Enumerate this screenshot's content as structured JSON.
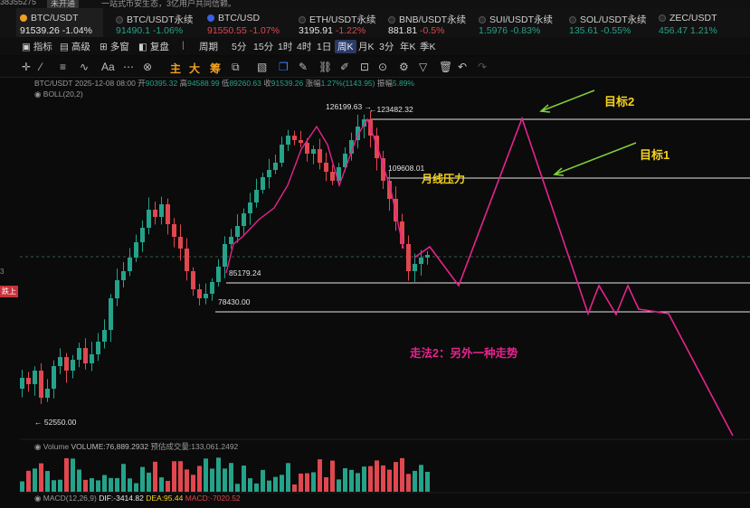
{
  "top_strip": {
    "left_text": "38355275",
    "badge": "未开通",
    "notice": "一站式币安生态，3亿用户共同信赖。"
  },
  "tickers": [
    {
      "symbol": "BTC/USDT",
      "price": "91539.26",
      "change": "-1.04%",
      "active": true
    },
    {
      "symbol": "BTC/USDT永续",
      "price": "91490.1",
      "change": "-1.06%",
      "active": false
    },
    {
      "symbol": "BTC/USD",
      "price": "91550.55",
      "change": "-1.07%",
      "active": false
    },
    {
      "symbol": "ETH/USDT永续",
      "price": "3195.91",
      "change": "-1.22%",
      "active": false
    },
    {
      "symbol": "BNB/USDT永续",
      "price": "881.81",
      "change": "-0.5%",
      "active": false
    },
    {
      "symbol": "SUI/USDT永续",
      "price": "1.5976",
      "change": "-0.83%",
      "active": false
    },
    {
      "symbol": "SOL/USDT永续",
      "price": "135.61",
      "change": "-0.55%",
      "active": false
    },
    {
      "symbol": "ZEC/USDT",
      "price": "456.47",
      "change": "1.21%",
      "active": false
    }
  ],
  "toolbar": {
    "indicators": "指标",
    "advanced": "高级",
    "multi_window": "多窗",
    "replay": "复盘",
    "period_label": "周期",
    "periods": [
      "5分",
      "15分",
      "1时",
      "4时",
      "1日",
      "周K",
      "月K",
      "3分",
      "年K",
      "季K"
    ],
    "selected_period": "周K"
  },
  "drawbar": {
    "main": "主",
    "big": "大",
    "chip": "筹"
  },
  "ohlc": {
    "pair": "BTC/USDT",
    "date": "2025-12-08 08:00",
    "open_label": "开",
    "open": "90395.32",
    "high_label": "高",
    "high": "94588.99",
    "low_label": "低",
    "low": "89260.63",
    "close_label": "收",
    "close": "91539.26",
    "change_label": "涨幅",
    "change": "1.27%(1143.95)",
    "amp_label": "振幅",
    "amp": "5.89%"
  },
  "boll_label": "BOLL(20,2)",
  "price_labels": {
    "high1": "126199.63",
    "high2": "123482.32",
    "monthly": "109608.01",
    "support1": "85179.24",
    "support2": "78430.00",
    "low": "52550.00"
  },
  "annotations": {
    "target2": "目标2",
    "target1": "目标1",
    "monthly_pressure": "月线压力",
    "scenario2": "走法2：另外一种走势"
  },
  "left_axis": {
    "label_a": "3",
    "tag": "跌上"
  },
  "volume": {
    "label": "Volume",
    "volume": "VOLUME:76,889.2932",
    "forecast": "预估成交量:133,061.2492"
  },
  "macd": {
    "label": "MACD(12,26,9)",
    "dif": "DIF:-3414.82",
    "dea": "DEA:95.44",
    "macd": "MACD:-7020.52"
  },
  "colors": {
    "up": "#25a28a",
    "down": "#e0474f",
    "pink": "#e7238e",
    "green": "#7fd23a",
    "yellow": "#f5d21e",
    "accent": "#3b5fe0"
  }
}
